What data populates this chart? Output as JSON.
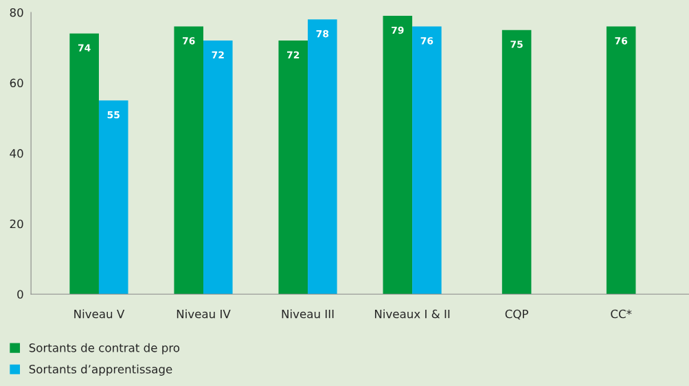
{
  "chart_data": {
    "type": "bar",
    "categories": [
      "Niveau V",
      "Niveau IV",
      "Niveau III",
      "Niveaux I & II",
      "CQP",
      "CC*"
    ],
    "series": [
      {
        "name": "Sortants de contrat de pro",
        "color": "#009a3d",
        "values": [
          74,
          76,
          72,
          79,
          75,
          76
        ]
      },
      {
        "name": "Sortants d’apprentissage",
        "color": "#00b0e6",
        "values": [
          55,
          72,
          78,
          76,
          null,
          null
        ]
      }
    ],
    "ylim": [
      0,
      80
    ],
    "yticks": [
      0,
      20,
      40,
      60,
      80
    ],
    "grid": false,
    "legend": "bottom left",
    "data_labels": true
  }
}
